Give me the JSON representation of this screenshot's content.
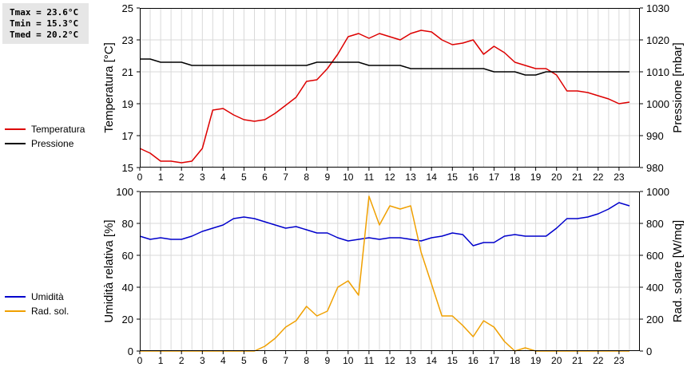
{
  "stats": {
    "tmax": "Tmax = 23.6°C",
    "tmin": "Tmin = 15.3°C",
    "tmed": "Tmed = 20.2°C"
  },
  "legend_top": [
    {
      "label": "Temperatura",
      "color": "#dd0000"
    },
    {
      "label": "Pressione",
      "color": "#000000"
    }
  ],
  "legend_bottom": [
    {
      "label": "Umidità",
      "color": "#0000cc"
    },
    {
      "label": "Rad. sol.",
      "color": "#f0a000"
    }
  ],
  "chart_data": [
    {
      "type": "line",
      "xlim": [
        0,
        24
      ],
      "xticks": [
        "0",
        "1",
        "2",
        "3",
        "4",
        "5",
        "6",
        "7",
        "8",
        "9",
        "10",
        "11",
        "12",
        "13",
        "14",
        "15",
        "16",
        "17",
        "18",
        "19",
        "20",
        "21",
        "22",
        "23"
      ],
      "ylabel_left": "Temperatura [°C]",
      "ylabel_right": "Pressione [mbar]",
      "ylim_left": [
        15,
        25
      ],
      "yticks_left": [
        "15",
        "17",
        "19",
        "21",
        "23",
        "25"
      ],
      "ylim_right": [
        980,
        1030
      ],
      "yticks_right": [
        "980",
        "990",
        "1000",
        "1010",
        "1020",
        "1030"
      ],
      "grid": true,
      "series": [
        {
          "name": "Temperatura",
          "axis": "left",
          "color": "#dd0000",
          "x": [
            0,
            0.5,
            1,
            1.5,
            2,
            2.5,
            3,
            3.5,
            4,
            4.5,
            5,
            5.5,
            6,
            6.5,
            7,
            7.5,
            8,
            8.5,
            9,
            9.5,
            10,
            10.5,
            11,
            11.5,
            12,
            12.5,
            13,
            13.5,
            14,
            14.5,
            15,
            15.5,
            16,
            16.5,
            17,
            17.5,
            18,
            18.5,
            19,
            19.5,
            20,
            20.5,
            21,
            21.5,
            22,
            22.5,
            23,
            23.5
          ],
          "y": [
            16.2,
            15.9,
            15.4,
            15.4,
            15.3,
            15.4,
            16.2,
            18.6,
            18.7,
            18.3,
            18.0,
            17.9,
            18.0,
            18.4,
            18.9,
            19.4,
            20.4,
            20.5,
            21.2,
            22.1,
            23.2,
            23.4,
            23.1,
            23.4,
            23.2,
            23.0,
            23.4,
            23.6,
            23.5,
            23.0,
            22.7,
            22.8,
            23.0,
            22.1,
            22.6,
            22.2,
            21.6,
            21.4,
            21.2,
            21.2,
            20.8,
            19.8,
            19.8,
            19.7,
            19.5,
            19.3,
            19.0,
            19.1
          ]
        },
        {
          "name": "Pressione",
          "axis": "right",
          "color": "#000000",
          "x": [
            0,
            0.5,
            1,
            1.5,
            2,
            2.5,
            3,
            3.5,
            4,
            4.5,
            5,
            5.5,
            6,
            6.5,
            7,
            7.5,
            8,
            8.5,
            9,
            9.5,
            10,
            10.5,
            11,
            11.5,
            12,
            12.5,
            13,
            13.5,
            14,
            14.5,
            15,
            15.5,
            16,
            16.5,
            17,
            17.5,
            18,
            18.5,
            19,
            19.5,
            20,
            20.5,
            21,
            21.5,
            22,
            22.5,
            23,
            23.5
          ],
          "y": [
            1014,
            1014,
            1013,
            1013,
            1013,
            1012,
            1012,
            1012,
            1012,
            1012,
            1012,
            1012,
            1012,
            1012,
            1012,
            1012,
            1012,
            1013,
            1013,
            1013,
            1013,
            1013,
            1012,
            1012,
            1012,
            1012,
            1011,
            1011,
            1011,
            1011,
            1011,
            1011,
            1011,
            1011,
            1010,
            1010,
            1010,
            1009,
            1009,
            1010,
            1010,
            1010,
            1010,
            1010,
            1010,
            1010,
            1010,
            1010
          ]
        }
      ]
    },
    {
      "type": "line",
      "xlim": [
        0,
        24
      ],
      "xticks": [
        "0",
        "1",
        "2",
        "3",
        "4",
        "5",
        "6",
        "7",
        "8",
        "9",
        "10",
        "11",
        "12",
        "13",
        "14",
        "15",
        "16",
        "17",
        "18",
        "19",
        "20",
        "21",
        "22",
        "23"
      ],
      "ylabel_left": "Umidità relativa [%]",
      "ylabel_right": "Rad. solare [W/mq]",
      "ylim_left": [
        0,
        100
      ],
      "yticks_left": [
        "0",
        "20",
        "40",
        "60",
        "80",
        "100"
      ],
      "ylim_right": [
        0,
        1000
      ],
      "yticks_right": [
        "0",
        "200",
        "400",
        "600",
        "800",
        "1000"
      ],
      "grid": true,
      "series": [
        {
          "name": "Umidità",
          "axis": "left",
          "color": "#0000cc",
          "x": [
            0,
            0.5,
            1,
            1.5,
            2,
            2.5,
            3,
            3.5,
            4,
            4.5,
            5,
            5.5,
            6,
            6.5,
            7,
            7.5,
            8,
            8.5,
            9,
            9.5,
            10,
            10.5,
            11,
            11.5,
            12,
            12.5,
            13,
            13.5,
            14,
            14.5,
            15,
            15.5,
            16,
            16.5,
            17,
            17.5,
            18,
            18.5,
            19,
            19.5,
            20,
            20.5,
            21,
            21.5,
            22,
            22.5,
            23,
            23.5
          ],
          "y": [
            72,
            70,
            71,
            70,
            70,
            72,
            75,
            77,
            79,
            83,
            84,
            83,
            81,
            79,
            77,
            78,
            76,
            74,
            74,
            71,
            69,
            70,
            71,
            70,
            71,
            71,
            70,
            69,
            71,
            72,
            74,
            73,
            66,
            68,
            68,
            72,
            73,
            72,
            72,
            72,
            77,
            83,
            83,
            84,
            86,
            89,
            93,
            91
          ]
        },
        {
          "name": "Rad. sol.",
          "axis": "right",
          "color": "#f0a000",
          "x": [
            0,
            0.5,
            1,
            1.5,
            2,
            2.5,
            3,
            3.5,
            4,
            4.5,
            5,
            5.5,
            6,
            6.5,
            7,
            7.5,
            8,
            8.5,
            9,
            9.5,
            10,
            10.5,
            11,
            11.5,
            12,
            12.5,
            13,
            13.5,
            14,
            14.5,
            15,
            15.5,
            16,
            16.5,
            17,
            17.5,
            18,
            18.5,
            19,
            19.5,
            20,
            20.5,
            21,
            21.5,
            22,
            22.5,
            23,
            23.5
          ],
          "y": [
            0,
            0,
            0,
            0,
            0,
            0,
            0,
            0,
            0,
            0,
            0,
            0,
            30,
            80,
            150,
            190,
            280,
            220,
            250,
            400,
            440,
            350,
            970,
            790,
            910,
            890,
            910,
            620,
            420,
            220,
            220,
            160,
            90,
            190,
            150,
            60,
            0,
            20,
            0,
            0,
            0,
            0,
            0,
            0,
            0,
            0,
            0,
            0
          ]
        }
      ]
    }
  ]
}
